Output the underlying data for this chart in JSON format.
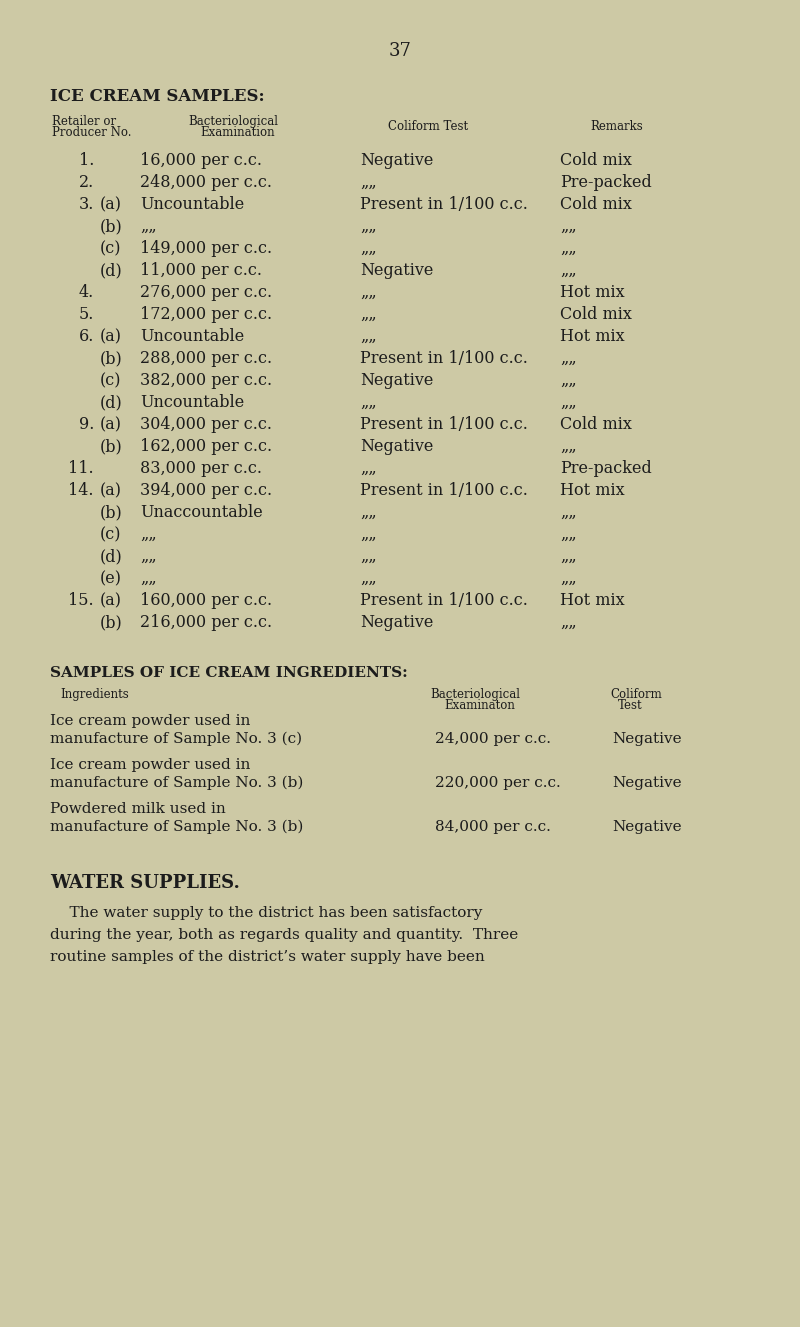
{
  "page_number": "37",
  "bg_color": "#cdc9a5",
  "text_color": "#1c1c1c",
  "ditto": "„„",
  "ditto1": "„",
  "rows": [
    {
      "no": "1.",
      "sub": "",
      "bact": "16,000 per c.c.",
      "col": "Negative",
      "rem": "Cold mix",
      "indent": false
    },
    {
      "no": "2.",
      "sub": "",
      "bact": "248,000 per c.c.",
      "col": "„„",
      "rem": "Pre-packed",
      "indent": false
    },
    {
      "no": "3.",
      "sub": "(a)",
      "bact": "Uncountable",
      "col": "Present in 1/100 c.c.",
      "rem": "Cold mix",
      "indent": true
    },
    {
      "no": "",
      "sub": "(b)",
      "bact": "„„",
      "col": "„„",
      "rem": "„„",
      "indent": true
    },
    {
      "no": "",
      "sub": "(c)",
      "bact": "149,000 per c.c.",
      "col": "„„",
      "rem": "„„",
      "indent": true
    },
    {
      "no": "",
      "sub": "(d)",
      "bact": "11,000 per c.c.",
      "col": "Negative",
      "rem": "„„",
      "indent": true
    },
    {
      "no": "4.",
      "sub": "",
      "bact": "276,000 per c.c.",
      "col": "„„",
      "rem": "Hot mix",
      "indent": false
    },
    {
      "no": "5.",
      "sub": "",
      "bact": "172,000 per c.c.",
      "col": "„„",
      "rem": "Cold mix",
      "indent": false
    },
    {
      "no": "6.",
      "sub": "(a)",
      "bact": "Uncountable",
      "col": "„„",
      "rem": "Hot mix",
      "indent": true
    },
    {
      "no": "",
      "sub": "(b)",
      "bact": "288,000 per c.c.",
      "col": "Present in 1/100 c.c.",
      "rem": "„„",
      "indent": true
    },
    {
      "no": "",
      "sub": "(c)",
      "bact": "382,000 per c.c.",
      "col": "Negative",
      "rem": "„„",
      "indent": true
    },
    {
      "no": "",
      "sub": "(d)",
      "bact": "Uncountable",
      "col": "„„",
      "rem": "„„",
      "indent": true
    },
    {
      "no": "9.",
      "sub": "(a)",
      "bact": "304,000 per c.c.",
      "col": "Present in 1/100 c.c.",
      "rem": "Cold mix",
      "indent": true
    },
    {
      "no": "",
      "sub": "(b)",
      "bact": "162,000 per c.c.",
      "col": "Negative",
      "rem": "„„",
      "indent": true
    },
    {
      "no": "11.",
      "sub": "",
      "bact": "83,000 per c.c.",
      "col": "„„",
      "rem": "Pre-packed",
      "indent": false
    },
    {
      "no": "14.",
      "sub": "(a)",
      "bact": "394,000 per c.c.",
      "col": "Present in 1/100 c.c.",
      "rem": "Hot mix",
      "indent": true
    },
    {
      "no": "",
      "sub": "(b)",
      "bact": "Unaccountable",
      "col": "„„",
      "rem": "„„",
      "indent": true
    },
    {
      "no": "",
      "sub": "(c)",
      "bact": "„„",
      "col": "„„",
      "rem": "„„",
      "indent": true
    },
    {
      "no": "",
      "sub": "(d)",
      "bact": "„„",
      "col": "„„",
      "rem": "„„",
      "indent": true
    },
    {
      "no": "",
      "sub": "(e)",
      "bact": "„„",
      "col": "„„",
      "rem": "„„",
      "indent": true
    },
    {
      "no": "15.",
      "sub": "(a)",
      "bact": "160,000 per c.c.",
      "col": "Present in 1/100 c.c.",
      "rem": "Hot mix",
      "indent": true
    },
    {
      "no": "",
      "sub": "(b)",
      "bact": "216,000 per c.c.",
      "col": "Negative",
      "rem": "„„",
      "indent": true
    }
  ],
  "ingr_rows": [
    {
      "line1": "Ice cream powder used in",
      "line2": "manufacture of Sample No. 3 (c)",
      "bact": "24,000 per c.c.",
      "col": "Negative"
    },
    {
      "line1": "Ice cream powder used in",
      "line2": "manufacture of Sample No. 3 (b)",
      "bact": "220,000 per c.c.",
      "col": "Negative"
    },
    {
      "line1": "Powdered milk used in",
      "line2": "manufacture of Sample No. 3 (b)",
      "bact": "84,000 per c.c.",
      "col": "Negative"
    }
  ]
}
